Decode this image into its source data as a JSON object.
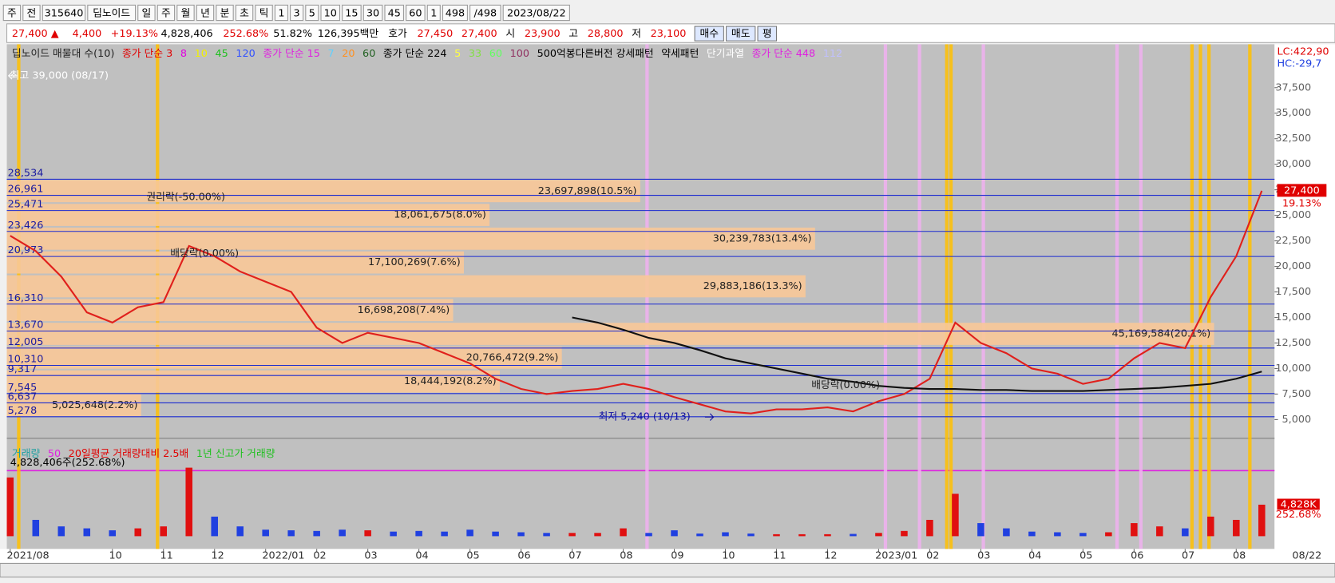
{
  "toolbar": {
    "items": [
      "주",
      "전",
      "315640",
      "딥노이드",
      "일",
      "주",
      "월",
      "년",
      "분",
      "초",
      "틱",
      "1",
      "3",
      "5",
      "10",
      "15",
      "30",
      "45",
      "60",
      "1",
      "498",
      "/498",
      "2023/08/22"
    ]
  },
  "info": {
    "items": [
      {
        "text": "27,400 ▲",
        "color": "#e00000"
      },
      {
        "text": "4,400",
        "color": "#e00000"
      },
      {
        "text": "+19.13%",
        "color": "#e00000"
      },
      {
        "text": "4,828,406",
        "color": "#000000"
      },
      {
        "text": "252.68%",
        "color": "#e00000"
      },
      {
        "text": "51.82%",
        "color": "#000000"
      },
      {
        "text": "126,395백만",
        "color": "#000000"
      },
      {
        "text": "호가",
        "color": "#000000"
      },
      {
        "text": "27,450",
        "color": "#e00000"
      },
      {
        "text": "27,400",
        "color": "#e00000"
      },
      {
        "text": "시",
        "color": "#000000"
      },
      {
        "text": "23,900",
        "color": "#e00000"
      },
      {
        "text": "고",
        "color": "#000000"
      },
      {
        "text": "28,800",
        "color": "#e00000"
      },
      {
        "text": "저",
        "color": "#000000"
      },
      {
        "text": "23,100",
        "color": "#e00000"
      }
    ],
    "buttons": [
      "매수",
      "매도",
      "평"
    ]
  },
  "chart_data": [
    {
      "type": "line",
      "categories": [
        "2021/08",
        null,
        null,
        null,
        "10",
        null,
        "11",
        null,
        "12",
        null,
        "2022/01",
        null,
        "02",
        null,
        "03",
        null,
        "04",
        null,
        "05",
        null,
        "06",
        null,
        "07",
        null,
        "08",
        null,
        "09",
        null,
        "10",
        null,
        "11",
        null,
        "12",
        null,
        "2023/01",
        null,
        "02",
        null,
        "03",
        null,
        "04",
        null,
        "05",
        null,
        "06",
        null,
        "07",
        null,
        "08",
        null
      ],
      "series": [
        {
          "color": "#e0201c",
          "values": [
            23000,
            21500,
            19000,
            15500,
            14500,
            16000,
            16500,
            22000,
            21000,
            19500,
            18500,
            17500,
            14000,
            12500,
            13500,
            13000,
            12500,
            11500,
            10500,
            9000,
            8000,
            7500,
            7800,
            8000,
            8500,
            8000,
            7200,
            6500,
            5800,
            5600,
            6000,
            6000,
            6200,
            5800,
            6800,
            7500,
            9000,
            14500,
            12500,
            11500,
            10000,
            9500,
            8500,
            9000,
            11000,
            12500,
            12000,
            17000,
            21000,
            27400
          ]
        },
        {
          "name": "종가 단순 224",
          "color": "#111111",
          "values": [
            null,
            null,
            null,
            null,
            null,
            null,
            null,
            null,
            null,
            null,
            null,
            null,
            null,
            null,
            null,
            null,
            null,
            null,
            null,
            null,
            null,
            null,
            15000,
            14500,
            13800,
            13000,
            12500,
            11800,
            11000,
            10500,
            10000,
            9500,
            9000,
            8700,
            8300,
            8100,
            8000,
            8000,
            7900,
            7900,
            7800,
            7800,
            7800,
            7900,
            8000,
            8100,
            8300,
            8500,
            9000,
            9700
          ]
        }
      ],
      "ylim": [
        4000,
        41500
      ],
      "yticks": [
        {
          "value": 5000,
          "label": "5,000"
        },
        {
          "value": 7500,
          "label": "7,500"
        },
        {
          "value": 10000,
          "label": "10,000"
        },
        {
          "value": 12500,
          "label": "12,500"
        },
        {
          "value": 15000,
          "label": "15,000"
        },
        {
          "value": 17500,
          "label": "17,500"
        },
        {
          "value": 20000,
          "label": "20,000"
        },
        {
          "value": 22500,
          "label": "22,500"
        },
        {
          "value": 25000,
          "label": "25,000"
        },
        {
          "value": 27500,
          "label": "27,500"
        },
        {
          "value": 30000,
          "label": "30,000"
        },
        {
          "value": 32500,
          "label": "32,500"
        },
        {
          "value": 35000,
          "label": "35,000"
        },
        {
          "value": 37500,
          "label": "37,500"
        }
      ],
      "levels": [
        {
          "value": 28534,
          "label": "28,534"
        },
        {
          "value": 26961,
          "label": "26,961"
        },
        {
          "value": 25471,
          "label": "25,471"
        },
        {
          "value": 23426,
          "label": "23,426"
        },
        {
          "value": 20973,
          "label": "20,973"
        },
        {
          "value": 16310,
          "label": "16,310"
        },
        {
          "value": 13670,
          "label": "13,670"
        },
        {
          "value": 12005,
          "label": "12,005"
        },
        {
          "value": 10310,
          "label": "10,310"
        },
        {
          "value": 9317,
          "label": "9,317"
        },
        {
          "value": 7545,
          "label": "7,545"
        },
        {
          "value": 6637,
          "label": "6,637"
        },
        {
          "value": 5278,
          "label": "5,278"
        }
      ],
      "profile": {
        "range": [
          5240,
          28534
        ],
        "color": "#f8c898",
        "values": [
          5025648,
          18444192,
          20766472,
          45169584,
          16698208,
          29883186,
          17100269,
          30239783,
          18061675,
          23697898
        ],
        "value_labels": [
          "5,025,648(2.2%)",
          "18,444,192(8.2%)",
          "20,766,472(9.2%)",
          "45,169,584(20.1%)",
          "16,698,208(7.4%)",
          "29,883,186(13.3%)",
          "17,100,269(7.6%)",
          "30,239,783(13.4%)",
          "18,061,675(8.0%)",
          "23,697,898(10.5%)"
        ]
      },
      "annotations": [
        "권리락(-50.00%)",
        "배당락(0.00%)",
        "배당락(0.00%)",
        "최저 5,240 (10/13)",
        "최고 39,000 (08/17)"
      ],
      "legend": [
        {
          "text": "딥노이드 매물대 수(10)",
          "color": "#222222"
        },
        {
          "text": "종가 단순 3",
          "color": "#e00000"
        },
        {
          "text": "8",
          "color": "#e000e0"
        },
        {
          "text": "10",
          "color": "#f0f000"
        },
        {
          "text": "45",
          "color": "#20c020"
        },
        {
          "text": "120",
          "color": "#3050ff"
        },
        {
          "text": "종가 단순 15",
          "color": "#e020e0"
        },
        {
          "text": "7",
          "color": "#60d0ff"
        },
        {
          "text": "20",
          "color": "#ff9020"
        },
        {
          "text": "60",
          "color": "#206020"
        },
        {
          "text": "종가 단순 224",
          "color": "#000000"
        },
        {
          "text": "5",
          "color": "#ffff40"
        },
        {
          "text": "33",
          "color": "#80e040"
        },
        {
          "text": "60",
          "color": "#60ff60"
        },
        {
          "text": "100",
          "color": "#903060"
        },
        {
          "text": "500억봉다른버전 강세패턴",
          "color": "#000000"
        },
        {
          "text": "약세패턴",
          "color": "#000000"
        },
        {
          "text": "단기과열",
          "color": "#ffffff"
        },
        {
          "text": "종가 단순 448",
          "color": "#e020e0"
        },
        {
          "text": "112",
          "color": "#c0c0ff"
        }
      ],
      "price_label": "27,400",
      "change_label": "19.13%",
      "lc": "LC:422,90",
      "hc": "HC:-29,7"
    },
    {
      "type": "bar",
      "values": [
        9000000,
        2500000,
        1500000,
        1200000,
        900000,
        1200000,
        1500000,
        10500000,
        3000000,
        1500000,
        1000000,
        900000,
        800000,
        1000000,
        900000,
        700000,
        800000,
        700000,
        1000000,
        700000,
        600000,
        500000,
        500000,
        500000,
        1200000,
        500000,
        900000,
        400000,
        600000,
        400000,
        300000,
        300000,
        300000,
        350000,
        500000,
        800000,
        2500000,
        6500000,
        2000000,
        1200000,
        700000,
        600000,
        500000,
        600000,
        2000000,
        1500000,
        1200000,
        3000000,
        2500000,
        4828406
      ],
      "up_color": "#e01010",
      "down_color": "#2040e0",
      "ylim": [
        0,
        12000000
      ],
      "marker": {
        "value": 4828406,
        "label": "4,828K"
      },
      "marker_pct": "252.68%",
      "summary": "4,828,406주(252.68%)",
      "legend": [
        {
          "text": "거래량",
          "color": "#20a0a0"
        },
        {
          "text": "50",
          "color": "#e020e0"
        },
        {
          "text": "20일평균 거래량대비 2.5배",
          "color": "#e00000"
        },
        {
          "text": "1년 신고가 거래량",
          "color": "#20c020"
        }
      ],
      "last_date": "08/22"
    }
  ]
}
